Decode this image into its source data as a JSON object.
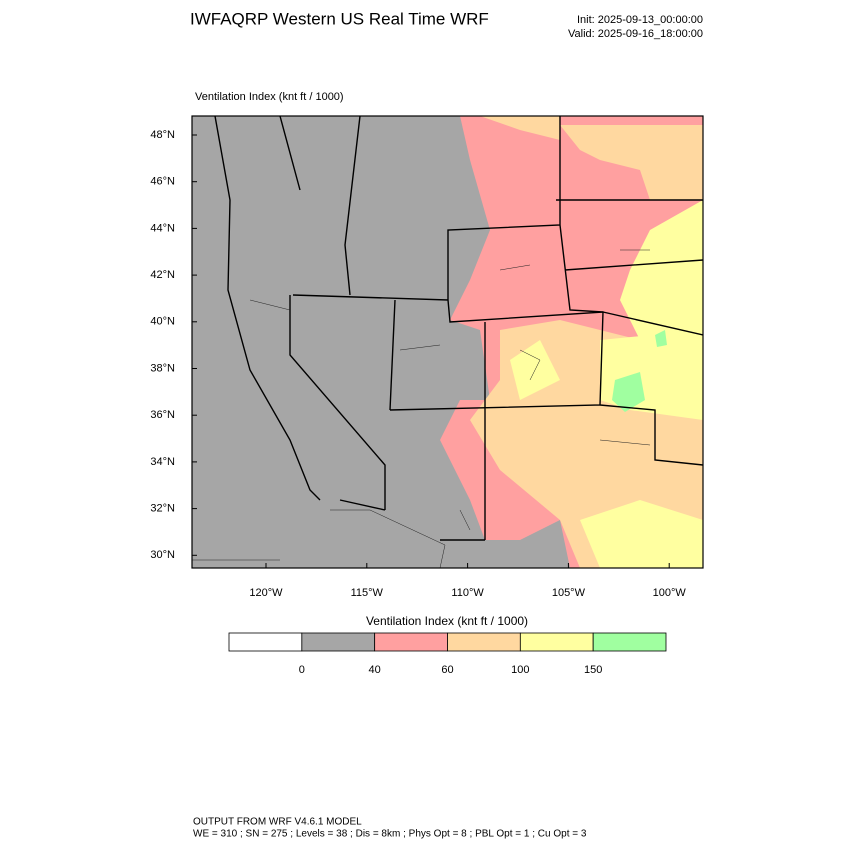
{
  "header": {
    "title": "IWFAQRP Western US Real Time WRF",
    "init": "Init: 2025-09-13_00:00:00",
    "valid": "Valid: 2025-09-16_18:00:00"
  },
  "map": {
    "label": "Ventilation Index   (knt ft / 1000)",
    "lat_labels": [
      "48°N",
      "46°N",
      "44°N",
      "42°N",
      "40°N",
      "38°N",
      "36°N",
      "34°N",
      "32°N",
      "30°N"
    ],
    "lon_labels": [
      "120°W",
      "115°W",
      "110°W",
      "105°W",
      "100°W"
    ]
  },
  "colorbar": {
    "title": "Ventilation Index   (knt ft / 1000)",
    "colors": [
      "#ffffff",
      "#a6a6a6",
      "#ffa0a0",
      "#ffd8a0",
      "#ffffa0",
      "#a0ffa0"
    ],
    "ticks": [
      0,
      40,
      60,
      100,
      150
    ]
  },
  "footer": {
    "line1": "OUTPUT FROM WRF V4.6.1 MODEL",
    "line2": "WE = 310 ; SN = 275 ; Levels = 38 ; Dis = 8km ; Phys Opt = 8 ; PBL Opt = 1 ; Cu Opt = 3"
  }
}
